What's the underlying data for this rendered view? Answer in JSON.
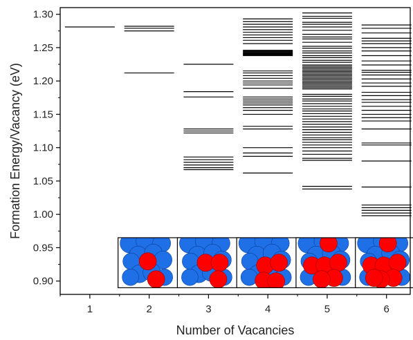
{
  "chart_data": {
    "type": "scatter",
    "xlabel": "Number of Vacancies",
    "ylabel": "Formation Energy/Vacancy (eV)",
    "xlim": [
      0.5,
      6.4
    ],
    "ylim": [
      0.88,
      1.31
    ],
    "xticks": [
      "1",
      "2",
      "3",
      "4",
      "5",
      "6"
    ],
    "yticks": [
      "0.90",
      "0.95",
      "1.00",
      "1.05",
      "1.10",
      "1.15",
      "1.20",
      "1.25",
      "1.30"
    ],
    "grid": false,
    "legend": "none",
    "colors": {
      "line": "#000000",
      "vacancy_atom": "#ff0000",
      "host_atom": "#1f6fe6"
    },
    "series": [
      {
        "vacancies": 1,
        "energies": [
          1.281
        ]
      },
      {
        "vacancies": 2,
        "energies": [
          1.282,
          1.279,
          1.275,
          1.212
        ]
      },
      {
        "vacancies": 3,
        "energies": [
          1.225,
          1.184,
          1.176,
          1.128,
          1.125,
          1.122,
          1.086,
          1.082,
          1.078,
          1.074,
          1.07,
          1.067
        ]
      },
      {
        "vacancies": 4,
        "energies": [
          1.293,
          1.289,
          1.285,
          1.281,
          1.277,
          1.273,
          1.269,
          1.265,
          1.261,
          1.256,
          1.246,
          1.245,
          1.244,
          1.243,
          1.242,
          1.241,
          1.24,
          1.239,
          1.238,
          1.215,
          1.212,
          1.208,
          1.204,
          1.2,
          1.197,
          1.194,
          1.189,
          1.176,
          1.173,
          1.17,
          1.167,
          1.164,
          1.16,
          1.156,
          1.15,
          1.132,
          1.128,
          1.1,
          1.092,
          1.087,
          1.062
        ]
      },
      {
        "vacancies": 5,
        "energies": [
          1.302,
          1.297,
          1.294,
          1.288,
          1.285,
          1.281,
          1.276,
          1.27,
          1.266,
          1.263,
          1.258,
          1.252,
          1.249,
          1.245,
          1.242,
          1.238,
          1.235,
          1.231,
          1.228,
          1.224,
          1.222,
          1.22,
          1.218,
          1.216,
          1.214,
          1.212,
          1.21,
          1.208,
          1.206,
          1.204,
          1.202,
          1.2,
          1.198,
          1.196,
          1.194,
          1.192,
          1.19,
          1.188,
          1.18,
          1.177,
          1.173,
          1.17,
          1.166,
          1.162,
          1.158,
          1.155,
          1.151,
          1.147,
          1.143,
          1.139,
          1.135,
          1.131,
          1.127,
          1.123,
          1.119,
          1.115,
          1.112,
          1.108,
          1.104,
          1.1,
          1.095,
          1.09,
          1.084,
          1.081,
          1.042,
          1.038
        ]
      },
      {
        "vacancies": 6,
        "energies": [
          1.284,
          1.279,
          1.272,
          1.264,
          1.26,
          1.256,
          1.25,
          1.245,
          1.238,
          1.23,
          1.224,
          1.216,
          1.213,
          1.209,
          1.203,
          1.197,
          1.192,
          1.183,
          1.178,
          1.172,
          1.168,
          1.162,
          1.156,
          1.15,
          1.145,
          1.14,
          1.128,
          1.107,
          1.104,
          1.08,
          1.041,
          1.014,
          1.01,
          1.006,
          1.002,
          0.998
        ]
      }
    ]
  }
}
